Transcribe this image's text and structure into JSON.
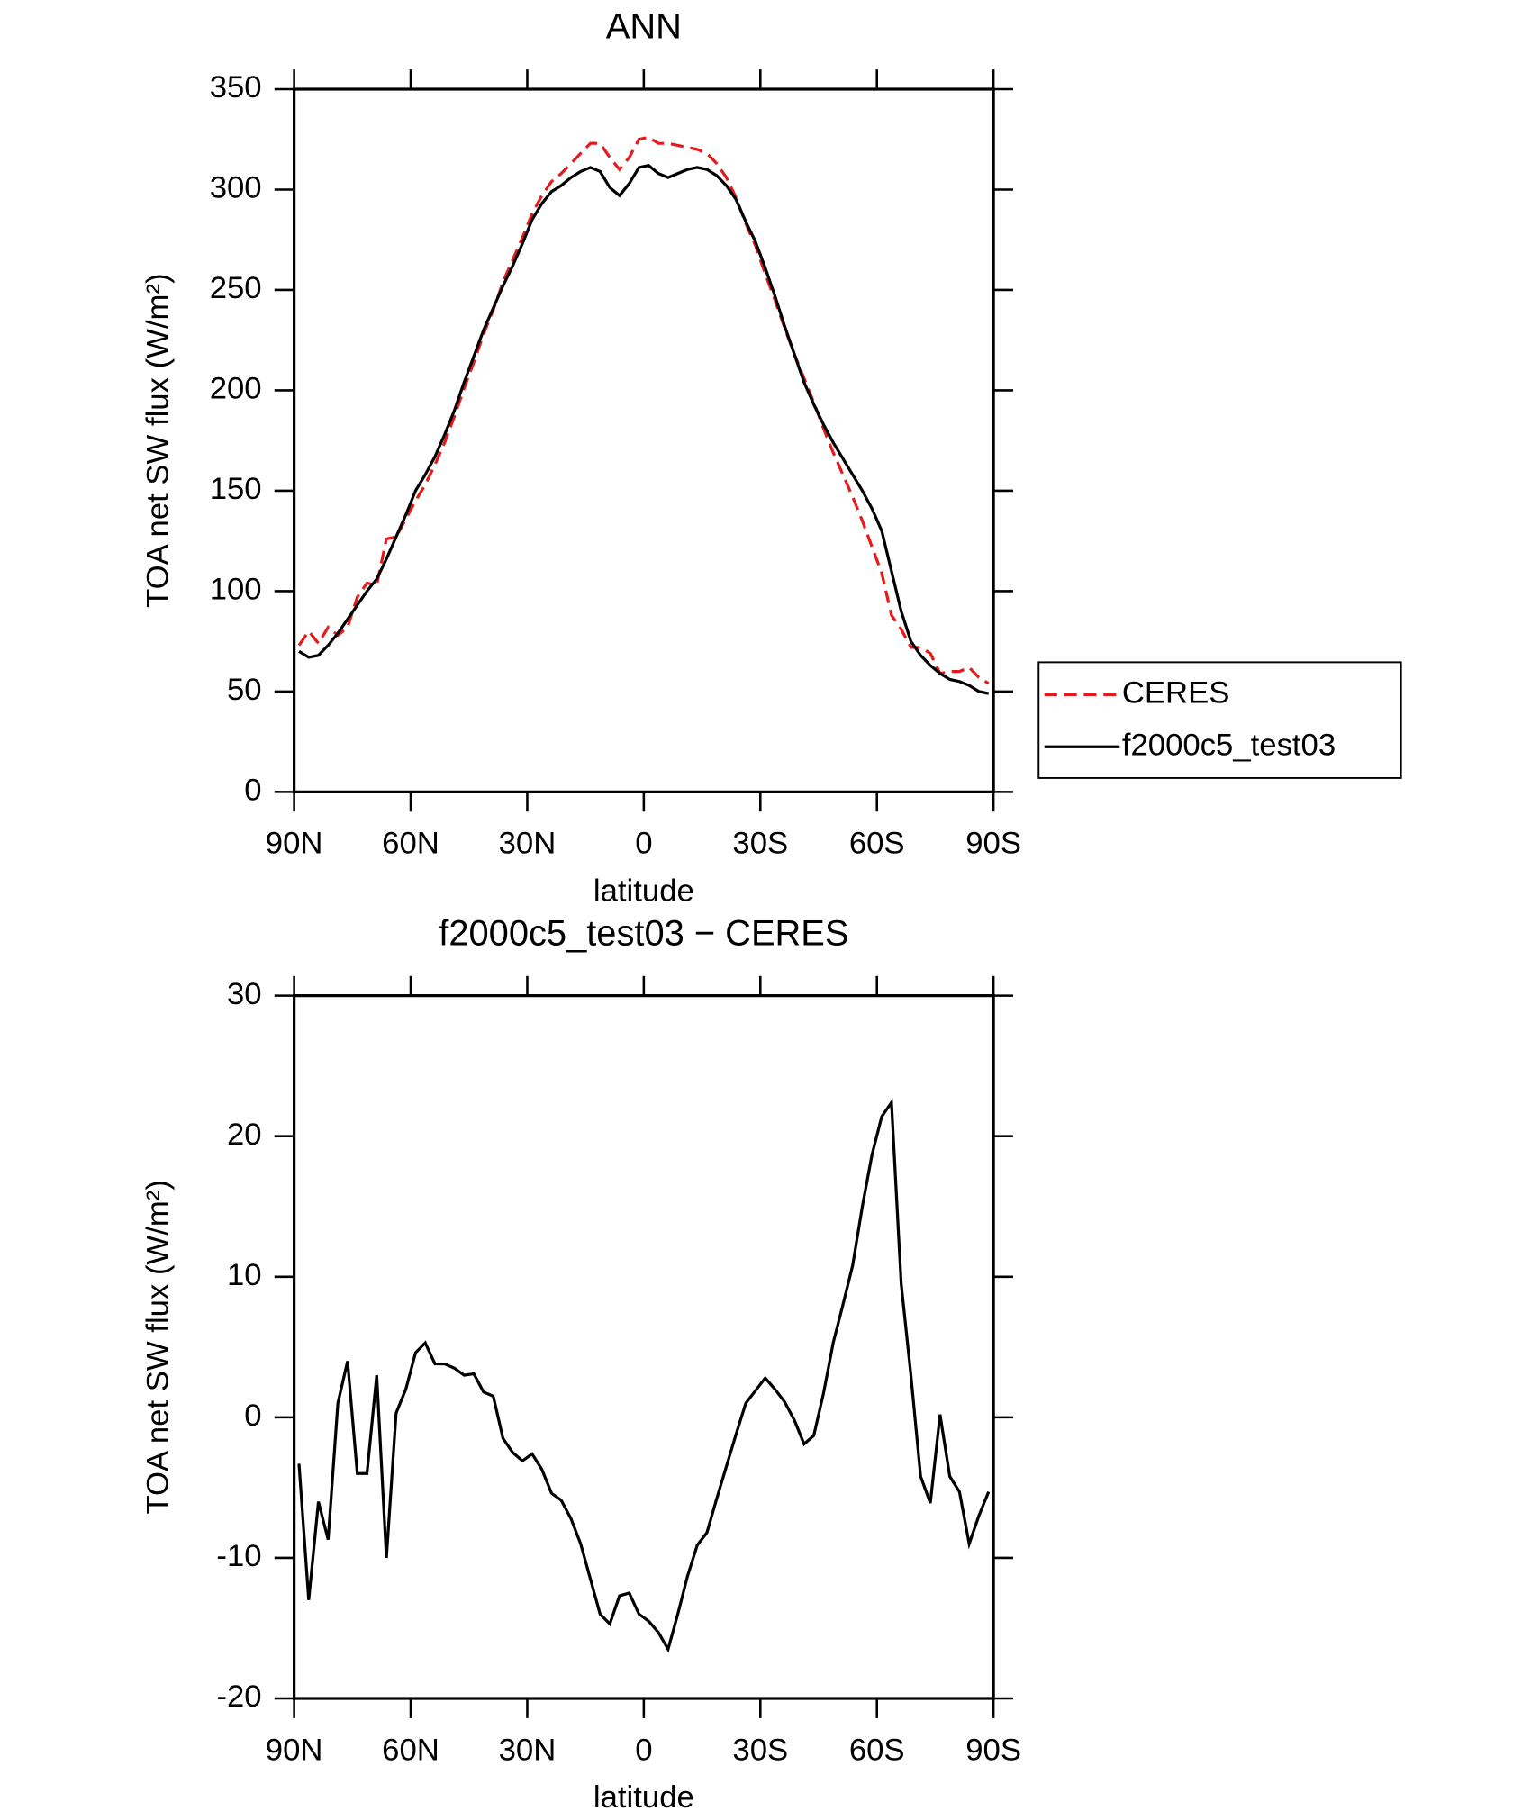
{
  "chart_data": [
    {
      "type": "line",
      "title": "ANN",
      "xlabel": "latitude",
      "ylabel": "TOA net SW flux (W/m²)",
      "x": [
        88.75,
        86.25,
        83.75,
        81.25,
        78.75,
        76.25,
        73.75,
        71.25,
        68.75,
        66.25,
        63.75,
        61.25,
        58.75,
        56.25,
        53.75,
        51.25,
        48.75,
        46.25,
        43.75,
        41.25,
        38.75,
        36.25,
        33.75,
        31.25,
        28.75,
        26.25,
        23.75,
        21.25,
        18.75,
        16.25,
        13.75,
        11.25,
        8.75,
        6.25,
        3.75,
        1.25,
        -1.25,
        -3.75,
        -6.25,
        -8.75,
        -11.25,
        -13.75,
        -16.25,
        -18.75,
        -21.25,
        -23.75,
        -26.25,
        -28.75,
        -31.25,
        -33.75,
        -36.25,
        -38.75,
        -41.25,
        -43.75,
        -46.25,
        -48.75,
        -51.25,
        -53.75,
        -56.25,
        -58.75,
        -61.25,
        -63.75,
        -66.25,
        -68.75,
        -71.25,
        -73.75,
        -76.25,
        -78.75,
        -81.25,
        -83.75,
        -86.25,
        -88.75
      ],
      "series": [
        {
          "name": "CERES",
          "color": "#e41a1c",
          "linestyle": "dashed",
          "values": [
            73,
            80,
            74,
            82,
            78,
            82,
            97,
            104,
            103,
            126,
            127,
            136,
            145,
            153,
            163,
            174,
            187,
            201,
            214,
            228,
            240,
            254,
            265,
            276,
            288,
            297,
            304,
            308,
            313,
            318,
            323,
            323,
            316,
            310,
            316,
            325,
            326,
            323,
            323,
            322,
            321,
            320,
            318,
            313,
            306,
            296,
            283,
            272,
            258,
            245,
            231,
            218,
            206,
            194,
            181,
            169,
            158,
            147,
            135,
            122,
            109,
            88,
            81,
            72,
            72,
            69,
            59,
            60,
            60,
            62,
            57,
            54
          ]
        },
        {
          "name": "f2000c5_test03",
          "color": "#000000",
          "linestyle": "solid",
          "values": [
            70,
            67,
            68,
            73,
            79,
            86,
            93,
            100,
            106,
            116,
            127,
            138,
            150,
            158,
            167,
            178,
            190,
            204,
            217,
            230,
            241,
            252,
            262,
            273,
            285,
            293,
            299,
            302,
            306,
            309,
            311,
            309,
            301,
            297,
            303,
            311,
            312,
            308,
            306,
            308,
            310,
            311,
            310,
            307,
            302,
            295,
            284,
            274,
            261,
            247,
            232,
            218,
            204,
            193,
            183,
            174,
            166,
            158,
            150,
            141,
            130,
            110,
            90,
            75,
            68,
            63,
            59,
            56,
            55,
            53,
            50,
            49
          ]
        }
      ],
      "xlim": [
        90,
        -90
      ],
      "xticks": [
        {
          "value": 90,
          "label": "90N"
        },
        {
          "value": 60,
          "label": "60N"
        },
        {
          "value": 30,
          "label": "30N"
        },
        0,
        {
          "value": -30,
          "label": "30S"
        },
        {
          "value": -60,
          "label": "60S"
        },
        {
          "value": -90,
          "label": "90S"
        }
      ],
      "ylim": [
        0,
        350
      ],
      "yticks": [
        0,
        50,
        100,
        150,
        200,
        250,
        300,
        350
      ],
      "legend": "right"
    },
    {
      "type": "line",
      "title": "f2000c5_test03 − CERES",
      "xlabel": "latitude",
      "ylabel": "TOA net SW flux (W/m²)",
      "x": [
        88.75,
        86.25,
        83.75,
        81.25,
        78.75,
        76.25,
        73.75,
        71.25,
        68.75,
        66.25,
        63.75,
        61.25,
        58.75,
        56.25,
        53.75,
        51.25,
        48.75,
        46.25,
        43.75,
        41.25,
        38.75,
        36.25,
        33.75,
        31.25,
        28.75,
        26.25,
        23.75,
        21.25,
        18.75,
        16.25,
        13.75,
        11.25,
        8.75,
        6.25,
        3.75,
        1.25,
        -1.25,
        -3.75,
        -6.25,
        -8.75,
        -11.25,
        -13.75,
        -16.25,
        -18.75,
        -21.25,
        -23.75,
        -26.25,
        -28.75,
        -31.25,
        -33.75,
        -36.25,
        -38.75,
        -41.25,
        -43.75,
        -46.25,
        -48.75,
        -51.25,
        -53.75,
        -56.25,
        -58.75,
        -61.25,
        -63.75,
        -66.25,
        -68.75,
        -71.25,
        -73.75,
        -76.25,
        -78.75,
        -81.25,
        -83.75,
        -86.25,
        -88.75
      ],
      "series": [
        {
          "color": "#000000",
          "linestyle": "solid",
          "values": [
            -3.3,
            -13,
            -6,
            -8.7,
            1,
            4,
            -4,
            -4,
            3,
            -10,
            0.3,
            2,
            4.6,
            5.3,
            3.8,
            3.8,
            3.5,
            3,
            3.1,
            1.8,
            1.5,
            -1.5,
            -2.5,
            -3.1,
            -2.6,
            -3.7,
            -5.4,
            -5.9,
            -7.2,
            -9,
            -11.5,
            -14,
            -14.7,
            -12.7,
            -12.5,
            -14,
            -14.5,
            -15.3,
            -16.5,
            -14,
            -11.3,
            -9.1,
            -8.2,
            -5.8,
            -3.5,
            -1.2,
            1,
            1.9,
            2.8,
            2,
            1.1,
            -0.2,
            -1.9,
            -1.3,
            1.7,
            5.3,
            8,
            10.8,
            15,
            18.7,
            21.4,
            22.4,
            9.5,
            3,
            -4.2,
            -6.1,
            0.2,
            -4.2,
            -5.3,
            -9,
            -7,
            -5.3
          ]
        }
      ],
      "xlim": [
        90,
        -90
      ],
      "xticks": [
        {
          "value": 90,
          "label": "90N"
        },
        {
          "value": 60,
          "label": "60N"
        },
        {
          "value": 30,
          "label": "30N"
        },
        0,
        {
          "value": -30,
          "label": "30S"
        },
        {
          "value": -60,
          "label": "60S"
        },
        {
          "value": -90,
          "label": "90S"
        }
      ],
      "ylim": [
        -20,
        30
      ],
      "yticks": [
        -20,
        -10,
        0,
        10,
        20,
        30
      ]
    }
  ]
}
